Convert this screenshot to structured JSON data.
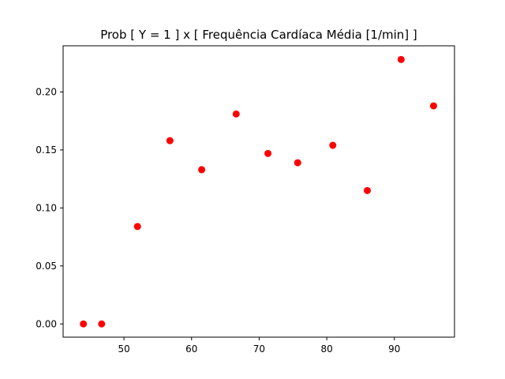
{
  "chart_data": {
    "type": "scatter",
    "title": "Prob [ Y = 1 ] x [ Frequência Cardíaca Média [1/min] ]",
    "xlabel": "",
    "ylabel": "",
    "xlim": [
      41.0,
      98.9
    ],
    "ylim": [
      -0.0114,
      0.2398
    ],
    "x_ticks": [
      50,
      60,
      70,
      80,
      90
    ],
    "y_ticks": [
      0.0,
      0.05,
      0.1,
      0.15,
      0.2
    ],
    "x_tick_labels": [
      "50",
      "60",
      "70",
      "80",
      "90"
    ],
    "y_tick_labels": [
      "0.00",
      "0.05",
      "0.10",
      "0.15",
      "0.20"
    ],
    "grid": false,
    "legend": "none",
    "series": [
      {
        "color": "#ff0000",
        "marker": "circle",
        "points": [
          {
            "x": 44.0,
            "y": 0.0
          },
          {
            "x": 46.7,
            "y": 0.0
          },
          {
            "x": 52.0,
            "y": 0.084
          },
          {
            "x": 56.8,
            "y": 0.158
          },
          {
            "x": 61.5,
            "y": 0.133
          },
          {
            "x": 66.6,
            "y": 0.181
          },
          {
            "x": 71.3,
            "y": 0.147
          },
          {
            "x": 75.7,
            "y": 0.139
          },
          {
            "x": 80.9,
            "y": 0.154
          },
          {
            "x": 86.0,
            "y": 0.115
          },
          {
            "x": 91.0,
            "y": 0.228
          },
          {
            "x": 95.8,
            "y": 0.188
          }
        ]
      }
    ]
  }
}
